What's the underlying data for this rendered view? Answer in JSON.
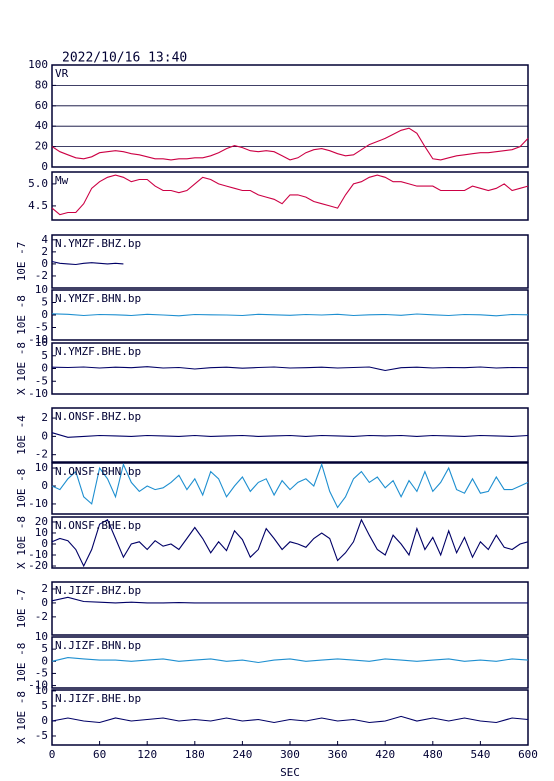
{
  "timestamp": "2022/10/16 13:40",
  "x_axis": {
    "label": "SEC",
    "xlim": [
      0,
      600
    ],
    "xticks": [
      0,
      60,
      120,
      180,
      240,
      300,
      360,
      420,
      480,
      540,
      600
    ]
  },
  "chart_data": [
    {
      "type": "line",
      "title": "VR",
      "color": "#cc0044",
      "grid": true,
      "ylim": [
        0,
        100
      ],
      "yticks": [
        0,
        20,
        40,
        60,
        80,
        100
      ],
      "x": [
        0,
        10,
        20,
        30,
        40,
        50,
        60,
        70,
        80,
        90,
        100,
        110,
        120,
        130,
        140,
        150,
        160,
        170,
        180,
        190,
        200,
        210,
        220,
        230,
        240,
        250,
        260,
        270,
        280,
        290,
        300,
        310,
        320,
        330,
        340,
        350,
        360,
        370,
        380,
        390,
        400,
        410,
        420,
        430,
        440,
        450,
        460,
        470,
        480,
        490,
        500,
        510,
        520,
        530,
        540,
        550,
        560,
        570,
        580,
        590,
        600
      ],
      "values": [
        20,
        15,
        12,
        9,
        8,
        10,
        14,
        15,
        16,
        15,
        13,
        12,
        10,
        8,
        8,
        7,
        8,
        8,
        9,
        9,
        11,
        14,
        18,
        21,
        19,
        16,
        15,
        16,
        15,
        11,
        7,
        9,
        14,
        17,
        18,
        16,
        13,
        11,
        12,
        17,
        22,
        25,
        28,
        32,
        36,
        38,
        33,
        20,
        8,
        7,
        9,
        11,
        12,
        13,
        14,
        14,
        15,
        16,
        17,
        20,
        28
      ]
    },
    {
      "type": "line",
      "title": "Mw",
      "color": "#cc0044",
      "grid": false,
      "ylim": [
        4.18,
        5.27
      ],
      "yticks": [
        4.5,
        {
          "value": 5,
          "label": "5.0"
        }
      ],
      "x": [
        0,
        10,
        20,
        30,
        40,
        50,
        60,
        70,
        80,
        90,
        100,
        110,
        120,
        130,
        140,
        150,
        160,
        170,
        180,
        190,
        200,
        210,
        220,
        230,
        240,
        250,
        260,
        270,
        280,
        290,
        300,
        310,
        320,
        330,
        340,
        350,
        360,
        370,
        380,
        390,
        400,
        410,
        420,
        430,
        440,
        450,
        460,
        470,
        480,
        490,
        500,
        510,
        520,
        530,
        540,
        550,
        560,
        570,
        580,
        590,
        600
      ],
      "values": [
        4.45,
        4.3,
        4.35,
        4.35,
        4.55,
        4.9,
        5.05,
        5.15,
        5.2,
        5.15,
        5.05,
        5.1,
        5.1,
        4.95,
        4.85,
        4.85,
        4.8,
        4.85,
        5.0,
        5.15,
        5.1,
        5.0,
        4.95,
        4.9,
        4.85,
        4.85,
        4.75,
        4.7,
        4.65,
        4.55,
        4.75,
        4.75,
        4.7,
        4.6,
        4.55,
        4.5,
        4.45,
        4.75,
        5.0,
        5.05,
        5.15,
        5.2,
        5.15,
        5.05,
        5.05,
        5.0,
        4.95,
        4.95,
        4.95,
        4.85,
        4.85,
        4.85,
        4.85,
        4.95,
        4.9,
        4.85,
        4.9,
        5.0,
        4.85,
        4.9,
        4.95
      ]
    },
    {
      "type": "line",
      "title": "N.YMZF.BHZ.bp",
      "ylabel": "10E -7",
      "color": "#000066",
      "grid": false,
      "ylim": [
        -4,
        4.8
      ],
      "yticks": [
        -2,
        0,
        2,
        4
      ],
      "x": [
        0,
        10,
        20,
        30,
        40,
        50,
        60,
        70,
        80,
        90
      ],
      "values": [
        0.4,
        0.1,
        0.0,
        -0.1,
        0.1,
        0.2,
        0.1,
        0.0,
        0.1,
        0.0
      ]
    },
    {
      "type": "line",
      "title": "N.YMZF.BHN.bp",
      "ylabel": "10E -8",
      "color": "#1e8fd0",
      "grid": false,
      "ylim": [
        -10,
        10
      ],
      "yticks": [
        -10,
        -5,
        0,
        5,
        10
      ],
      "x": [
        0,
        20,
        40,
        60,
        80,
        100,
        120,
        140,
        160,
        180,
        200,
        220,
        240,
        260,
        280,
        300,
        320,
        340,
        360,
        380,
        400,
        420,
        440,
        460,
        480,
        500,
        520,
        540,
        560,
        580,
        600
      ],
      "values": [
        0.5,
        0.3,
        -0.2,
        0.2,
        0.1,
        -0.2,
        0.3,
        0,
        -0.3,
        0.2,
        0.1,
        0,
        -0.2,
        0.3,
        0.1,
        -0.1,
        0.2,
        0,
        0.3,
        -0.2,
        0.1,
        0.2,
        -0.1,
        0.4,
        0.1,
        -0.2,
        0.2,
        0.1,
        -0.3,
        0.2,
        0.1
      ]
    },
    {
      "type": "line",
      "title": "N.YMZF.BHE.bp",
      "ylabel": "X 10E -8",
      "color": "#000066",
      "grid": false,
      "ylim": [
        -10,
        10
      ],
      "yticks": [
        -10,
        -5,
        0,
        5,
        10
      ],
      "x": [
        0,
        20,
        40,
        60,
        80,
        100,
        120,
        140,
        160,
        180,
        200,
        220,
        240,
        260,
        280,
        300,
        320,
        340,
        360,
        380,
        400,
        420,
        440,
        460,
        480,
        500,
        520,
        540,
        560,
        580,
        600
      ],
      "values": [
        0.5,
        0.4,
        0.6,
        0.2,
        0.5,
        0.3,
        0.7,
        0.2,
        0.4,
        -0.2,
        0.3,
        0.5,
        0.1,
        0.4,
        0.6,
        0.2,
        0.3,
        0.5,
        0.2,
        0.4,
        0.6,
        -0.8,
        0.3,
        0.5,
        0.2,
        0.4,
        0.3,
        0.6,
        0.2,
        0.4,
        0.3
      ]
    },
    {
      "type": "line",
      "title": "N.ONSF.BHZ.bp",
      "ylabel": "10E -4",
      "color": "#000066",
      "grid": false,
      "ylim": [
        -2.8,
        3.1
      ],
      "yticks": [
        -2,
        0,
        2
      ],
      "x": [
        0,
        20,
        40,
        60,
        80,
        100,
        120,
        140,
        160,
        180,
        200,
        220,
        240,
        260,
        280,
        300,
        320,
        340,
        360,
        380,
        400,
        420,
        440,
        460,
        480,
        500,
        520,
        540,
        560,
        580,
        600
      ],
      "values": [
        0.4,
        -0.1,
        0,
        0.1,
        0.05,
        0,
        0.1,
        0.05,
        0,
        0.1,
        0,
        0.05,
        0.1,
        0,
        0.05,
        0.1,
        0,
        0.1,
        0.05,
        0,
        0.1,
        0.05,
        0.1,
        0,
        0.1,
        0.05,
        0,
        0.1,
        0.05,
        0,
        0.1
      ]
    },
    {
      "type": "line",
      "title": "N.ONSF.BHN.bp",
      "ylabel": "10E -8",
      "color": "#1e8fd0",
      "grid": false,
      "ylim": [
        -15.6,
        12.8
      ],
      "yticks": [
        -10,
        0,
        10
      ],
      "x": [
        0,
        10,
        20,
        30,
        40,
        50,
        60,
        70,
        80,
        90,
        100,
        110,
        120,
        130,
        140,
        150,
        160,
        170,
        180,
        190,
        200,
        210,
        220,
        230,
        240,
        250,
        260,
        270,
        280,
        290,
        300,
        310,
        320,
        330,
        340,
        350,
        360,
        370,
        380,
        390,
        400,
        410,
        420,
        430,
        440,
        450,
        460,
        470,
        480,
        490,
        500,
        510,
        520,
        530,
        540,
        550,
        560,
        570,
        580,
        590,
        600
      ],
      "values": [
        0,
        -2,
        4,
        8,
        -6,
        -10,
        10,
        4,
        -6,
        12,
        2,
        -3,
        0,
        -2,
        -1,
        2,
        6,
        -2,
        4,
        -5,
        8,
        4,
        -6,
        0,
        5,
        -3,
        2,
        4,
        -5,
        3,
        -2,
        2,
        4,
        0,
        12,
        -3,
        -12,
        -6,
        4,
        8,
        2,
        5,
        -1,
        3,
        -6,
        3,
        -3,
        8,
        -3,
        2,
        10,
        -2,
        -4,
        4,
        -4,
        -3,
        5,
        -2,
        -2,
        0,
        2
      ]
    },
    {
      "type": "line",
      "title": "N.ONSF.BHE.bp",
      "ylabel": "X 10E -8",
      "color": "#000066",
      "grid": false,
      "ylim": [
        -21.8,
        24.5
      ],
      "yticks": [
        -20,
        -10,
        0,
        10,
        20
      ],
      "x": [
        0,
        10,
        20,
        30,
        40,
        50,
        60,
        70,
        80,
        90,
        100,
        110,
        120,
        130,
        140,
        150,
        160,
        170,
        180,
        190,
        200,
        210,
        220,
        230,
        240,
        250,
        260,
        270,
        280,
        290,
        300,
        310,
        320,
        330,
        340,
        350,
        360,
        370,
        380,
        390,
        400,
        410,
        420,
        430,
        440,
        450,
        460,
        470,
        480,
        490,
        500,
        510,
        520,
        530,
        540,
        550,
        560,
        570,
        580,
        590,
        600
      ],
      "values": [
        2,
        5,
        3,
        -5,
        -20,
        -5,
        18,
        22,
        5,
        -12,
        0,
        2,
        -5,
        3,
        -2,
        0,
        -5,
        5,
        15,
        5,
        -8,
        2,
        -6,
        12,
        4,
        -12,
        -5,
        14,
        5,
        -5,
        2,
        0,
        -3,
        5,
        10,
        5,
        -15,
        -8,
        2,
        22,
        8,
        -5,
        -10,
        8,
        0,
        -10,
        14,
        -5,
        6,
        -10,
        12,
        -8,
        6,
        -12,
        2,
        -5,
        8,
        -3,
        -5,
        0,
        2
      ]
    },
    {
      "type": "line",
      "title": "N.JIZF.BHZ.bp",
      "ylabel": "10E -7",
      "color": "#000066",
      "grid": false,
      "ylim": [
        -4.6,
        3
      ],
      "yticks": [
        -2,
        0,
        2
      ],
      "x": [
        0,
        20,
        40,
        60,
        80,
        100,
        120,
        140,
        160,
        180,
        200,
        220,
        240,
        260,
        280,
        300,
        320,
        340,
        360,
        380,
        400,
        420,
        440,
        460,
        480,
        500,
        520,
        540,
        560,
        580,
        600
      ],
      "values": [
        0.3,
        0.8,
        0.2,
        0.1,
        0,
        0.1,
        0,
        0,
        0.05,
        0,
        0,
        0,
        0,
        0,
        0,
        0,
        0,
        0,
        0,
        0,
        0,
        0,
        0,
        0,
        0,
        0,
        0,
        0,
        0,
        0,
        0
      ]
    },
    {
      "type": "line",
      "title": "N.JIZF.BHN.bp",
      "ylabel": "10E -8",
      "color": "#1e8fd0",
      "grid": false,
      "ylim": [
        -11,
        10
      ],
      "yticks": [
        -10,
        -5,
        0,
        5,
        10
      ],
      "x": [
        0,
        20,
        40,
        60,
        80,
        100,
        120,
        140,
        160,
        180,
        200,
        220,
        240,
        260,
        280,
        300,
        320,
        340,
        360,
        380,
        400,
        420,
        440,
        460,
        480,
        500,
        520,
        540,
        560,
        580,
        600
      ],
      "values": [
        0,
        1.5,
        1,
        0.5,
        0.5,
        0,
        0.5,
        1,
        0,
        0.5,
        1,
        0,
        0.5,
        -0.5,
        0.5,
        1,
        0,
        0.5,
        1,
        0.5,
        0,
        1,
        0.5,
        0,
        0.5,
        1,
        0,
        0.5,
        0,
        1,
        0.5
      ]
    },
    {
      "type": "line",
      "title": "N.JIZF.BHE.bp",
      "ylabel": "X 10E -8",
      "color": "#000066",
      "grid": false,
      "ylim": [
        -8,
        10.3
      ],
      "yticks": [
        -5,
        0,
        5,
        10
      ],
      "x": [
        0,
        20,
        40,
        60,
        80,
        100,
        120,
        140,
        160,
        180,
        200,
        220,
        240,
        260,
        280,
        300,
        320,
        340,
        360,
        380,
        400,
        420,
        440,
        460,
        480,
        500,
        520,
        540,
        560,
        580,
        600
      ],
      "values": [
        0,
        1,
        0,
        -0.5,
        1,
        0,
        0.5,
        1,
        0,
        0.5,
        0,
        1,
        0,
        0.5,
        -0.5,
        0.5,
        0,
        1,
        0,
        0.5,
        -0.5,
        0,
        1.5,
        0,
        1,
        0,
        1,
        0,
        -0.5,
        1,
        0.5
      ]
    }
  ]
}
